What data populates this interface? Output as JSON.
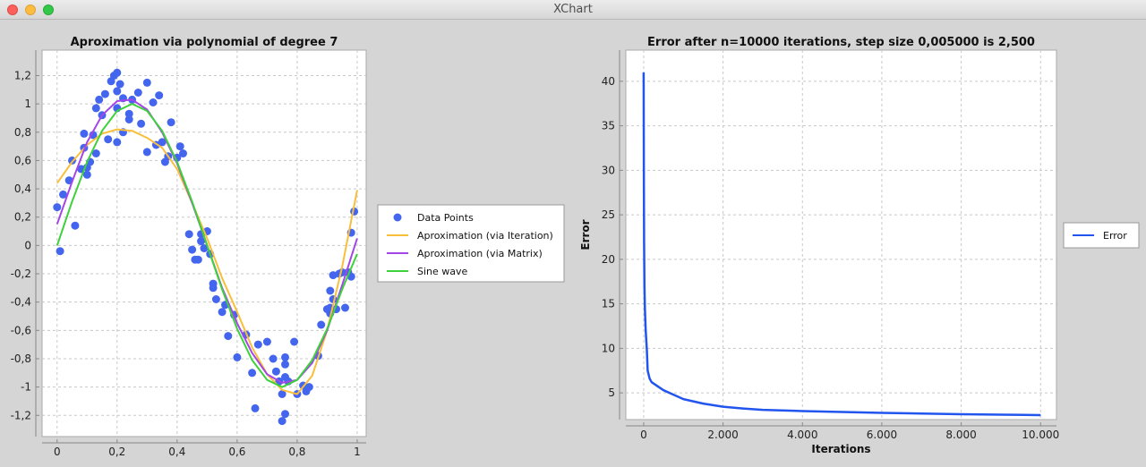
{
  "window": {
    "title": "XChart"
  },
  "chart_data": [
    {
      "type": "scatter",
      "title": "Aproximation via polynomial of degree 7",
      "xlabel": "",
      "ylabel": "",
      "xlim": [
        -0.05,
        1.03
      ],
      "ylim": [
        -1.35,
        1.38
      ],
      "xticks": [
        {
          "v": 0,
          "label": "0"
        },
        {
          "v": 0.2,
          "label": "0,2"
        },
        {
          "v": 0.4,
          "label": "0,4"
        },
        {
          "v": 0.6,
          "label": "0,6"
        },
        {
          "v": 0.8,
          "label": "0,8"
        },
        {
          "v": 1.0,
          "label": "1"
        }
      ],
      "yticks": [
        {
          "v": 1.2,
          "label": "1,2"
        },
        {
          "v": 1,
          "label": "1"
        },
        {
          "v": 0.8,
          "label": "0,8"
        },
        {
          "v": 0.6,
          "label": "0,6"
        },
        {
          "v": 0.4,
          "label": "0,4"
        },
        {
          "v": 0.2,
          "label": "0,2"
        },
        {
          "v": 0,
          "label": "0"
        },
        {
          "v": -0.2,
          "label": "-0,2"
        },
        {
          "v": -0.4,
          "label": "-0,4"
        },
        {
          "v": -0.6,
          "label": "-0,6"
        },
        {
          "v": -0.8,
          "label": "-0,8"
        },
        {
          "v": -1,
          "label": "-1"
        },
        {
          "v": -1.2,
          "label": "-1,2"
        }
      ],
      "grid": true,
      "legend_position": "outside-right",
      "series": [
        {
          "name": "Data Points",
          "kind": "scatter",
          "color": "#4466ee",
          "points": [
            [
              0.0,
              0.27
            ],
            [
              0.01,
              -0.04
            ],
            [
              0.02,
              0.36
            ],
            [
              0.04,
              0.46
            ],
            [
              0.05,
              0.6
            ],
            [
              0.06,
              0.14
            ],
            [
              0.08,
              0.54
            ],
            [
              0.09,
              0.79
            ],
            [
              0.09,
              0.69
            ],
            [
              0.1,
              0.5
            ],
            [
              0.1,
              0.55
            ],
            [
              0.11,
              0.59
            ],
            [
              0.12,
              0.78
            ],
            [
              0.13,
              0.97
            ],
            [
              0.13,
              0.65
            ],
            [
              0.14,
              1.03
            ],
            [
              0.15,
              0.92
            ],
            [
              0.16,
              1.07
            ],
            [
              0.17,
              0.75
            ],
            [
              0.18,
              1.16
            ],
            [
              0.19,
              1.2
            ],
            [
              0.2,
              1.22
            ],
            [
              0.2,
              1.09
            ],
            [
              0.2,
              0.97
            ],
            [
              0.21,
              1.14
            ],
            [
              0.22,
              1.04
            ],
            [
              0.2,
              0.73
            ],
            [
              0.22,
              0.8
            ],
            [
              0.24,
              0.93
            ],
            [
              0.25,
              1.03
            ],
            [
              0.24,
              0.89
            ],
            [
              0.27,
              1.08
            ],
            [
              0.28,
              0.86
            ],
            [
              0.3,
              0.66
            ],
            [
              0.3,
              1.15
            ],
            [
              0.32,
              1.01
            ],
            [
              0.33,
              0.71
            ],
            [
              0.34,
              1.06
            ],
            [
              0.35,
              0.73
            ],
            [
              0.36,
              0.59
            ],
            [
              0.37,
              0.63
            ],
            [
              0.38,
              0.87
            ],
            [
              0.4,
              0.62
            ],
            [
              0.41,
              0.7
            ],
            [
              0.42,
              0.65
            ],
            [
              0.44,
              0.08
            ],
            [
              0.45,
              -0.03
            ],
            [
              0.47,
              -0.1
            ],
            [
              0.46,
              -0.1
            ],
            [
              0.48,
              0.03
            ],
            [
              0.48,
              0.08
            ],
            [
              0.49,
              -0.02
            ],
            [
              0.5,
              0.1
            ],
            [
              0.51,
              -0.06
            ],
            [
              0.52,
              -0.27
            ],
            [
              0.52,
              -0.3
            ],
            [
              0.53,
              -0.38
            ],
            [
              0.55,
              -0.47
            ],
            [
              0.56,
              -0.42
            ],
            [
              0.57,
              -0.64
            ],
            [
              0.59,
              -0.49
            ],
            [
              0.6,
              -0.79
            ],
            [
              0.63,
              -0.63
            ],
            [
              0.65,
              -0.9
            ],
            [
              0.66,
              -1.15
            ],
            [
              0.67,
              -0.7
            ],
            [
              0.7,
              -0.68
            ],
            [
              0.72,
              -0.8
            ],
            [
              0.73,
              -0.89
            ],
            [
              0.74,
              -0.96
            ],
            [
              0.75,
              -1.05
            ],
            [
              0.75,
              -1.24
            ],
            [
              0.76,
              -1.19
            ],
            [
              0.76,
              -0.84
            ],
            [
              0.76,
              -0.79
            ],
            [
              0.76,
              -0.93
            ],
            [
              0.77,
              -0.96
            ],
            [
              0.79,
              -0.68
            ],
            [
              0.8,
              -1.05
            ],
            [
              0.82,
              -0.99
            ],
            [
              0.83,
              -1.03
            ],
            [
              0.84,
              -1.0
            ],
            [
              0.87,
              -0.78
            ],
            [
              0.88,
              -0.56
            ],
            [
              0.9,
              -0.45
            ],
            [
              0.91,
              -0.32
            ],
            [
              0.91,
              -0.44
            ],
            [
              0.91,
              -0.48
            ],
            [
              0.92,
              -0.38
            ],
            [
              0.92,
              -0.21
            ],
            [
              0.93,
              -0.45
            ],
            [
              0.94,
              -0.2
            ],
            [
              0.95,
              -0.19
            ],
            [
              0.96,
              -0.44
            ],
            [
              0.97,
              -0.19
            ],
            [
              0.98,
              -0.22
            ],
            [
              0.98,
              0.09
            ],
            [
              0.99,
              0.24
            ]
          ]
        },
        {
          "name": "Aproximation (via Iteration)",
          "kind": "line",
          "color": "#f8bf3c",
          "points": [
            [
              0.0,
              0.44
            ],
            [
              0.05,
              0.59
            ],
            [
              0.1,
              0.71
            ],
            [
              0.15,
              0.79
            ],
            [
              0.2,
              0.82
            ],
            [
              0.25,
              0.81
            ],
            [
              0.3,
              0.76
            ],
            [
              0.35,
              0.69
            ],
            [
              0.4,
              0.54
            ],
            [
              0.45,
              0.3
            ],
            [
              0.5,
              0.05
            ],
            [
              0.55,
              -0.23
            ],
            [
              0.6,
              -0.47
            ],
            [
              0.65,
              -0.72
            ],
            [
              0.7,
              -0.91
            ],
            [
              0.75,
              -1.02
            ],
            [
              0.8,
              -1.05
            ],
            [
              0.85,
              -0.92
            ],
            [
              0.9,
              -0.6
            ],
            [
              0.95,
              -0.15
            ],
            [
              1.0,
              0.39
            ]
          ]
        },
        {
          "name": "Aproximation (via Matrix)",
          "kind": "line",
          "color": "#a346e6",
          "points": [
            [
              0.0,
              0.15
            ],
            [
              0.05,
              0.45
            ],
            [
              0.1,
              0.73
            ],
            [
              0.15,
              0.92
            ],
            [
              0.2,
              1.02
            ],
            [
              0.25,
              1.03
            ],
            [
              0.3,
              0.96
            ],
            [
              0.35,
              0.8
            ],
            [
              0.4,
              0.58
            ],
            [
              0.45,
              0.3
            ],
            [
              0.5,
              0.0
            ],
            [
              0.55,
              -0.3
            ],
            [
              0.6,
              -0.55
            ],
            [
              0.65,
              -0.76
            ],
            [
              0.7,
              -0.91
            ],
            [
              0.75,
              -0.97
            ],
            [
              0.8,
              -0.95
            ],
            [
              0.85,
              -0.83
            ],
            [
              0.9,
              -0.6
            ],
            [
              0.95,
              -0.28
            ],
            [
              1.0,
              0.05
            ]
          ]
        },
        {
          "name": "Sine wave",
          "kind": "line",
          "color": "#3dd13b",
          "points": [
            [
              0.0,
              0.0
            ],
            [
              0.05,
              0.31
            ],
            [
              0.1,
              0.59
            ],
            [
              0.15,
              0.81
            ],
            [
              0.2,
              0.95
            ],
            [
              0.25,
              1.0
            ],
            [
              0.3,
              0.95
            ],
            [
              0.35,
              0.81
            ],
            [
              0.4,
              0.59
            ],
            [
              0.45,
              0.31
            ],
            [
              0.5,
              0.0
            ],
            [
              0.55,
              -0.31
            ],
            [
              0.6,
              -0.59
            ],
            [
              0.65,
              -0.81
            ],
            [
              0.7,
              -0.95
            ],
            [
              0.75,
              -1.0
            ],
            [
              0.8,
              -0.95
            ],
            [
              0.85,
              -0.81
            ],
            [
              0.9,
              -0.59
            ],
            [
              0.95,
              -0.31
            ],
            [
              1.0,
              -0.06
            ]
          ]
        }
      ]
    },
    {
      "type": "line",
      "title": "Error after n=10000 iterations, step size 0,005000 is 2,500",
      "xlabel": "Iterations",
      "ylabel": "Error",
      "xlim": [
        -450,
        10400
      ],
      "ylim": [
        2.0,
        43.5
      ],
      "xticks": [
        {
          "v": 0,
          "label": "0"
        },
        {
          "v": 2000,
          "label": "2.000"
        },
        {
          "v": 4000,
          "label": "4.000"
        },
        {
          "v": 6000,
          "label": "6.000"
        },
        {
          "v": 8000,
          "label": "8.000"
        },
        {
          "v": 10000,
          "label": "10.000"
        }
      ],
      "yticks": [
        {
          "v": 40,
          "label": "40"
        },
        {
          "v": 35,
          "label": "35"
        },
        {
          "v": 30,
          "label": "30"
        },
        {
          "v": 25,
          "label": "25"
        },
        {
          "v": 20,
          "label": "20"
        },
        {
          "v": 15,
          "label": "15"
        },
        {
          "v": 10,
          "label": "10"
        },
        {
          "v": 5,
          "label": "5"
        }
      ],
      "grid": true,
      "legend_position": "outside-right",
      "series": [
        {
          "name": "Error",
          "kind": "line",
          "color": "#2255ee",
          "points": [
            [
              0,
              41
            ],
            [
              5,
              28
            ],
            [
              10,
              22
            ],
            [
              20,
              17
            ],
            [
              30,
              14.5
            ],
            [
              50,
              12
            ],
            [
              80,
              9.8
            ],
            [
              100,
              7.5
            ],
            [
              150,
              6.6
            ],
            [
              200,
              6.2
            ],
            [
              300,
              5.9
            ],
            [
              500,
              5.3
            ],
            [
              800,
              4.7
            ],
            [
              1000,
              4.3
            ],
            [
              1500,
              3.8
            ],
            [
              2000,
              3.45
            ],
            [
              2500,
              3.25
            ],
            [
              3000,
              3.1
            ],
            [
              4000,
              2.95
            ],
            [
              5000,
              2.85
            ],
            [
              6000,
              2.75
            ],
            [
              7000,
              2.68
            ],
            [
              8000,
              2.6
            ],
            [
              9000,
              2.55
            ],
            [
              10000,
              2.5
            ]
          ]
        }
      ]
    }
  ]
}
